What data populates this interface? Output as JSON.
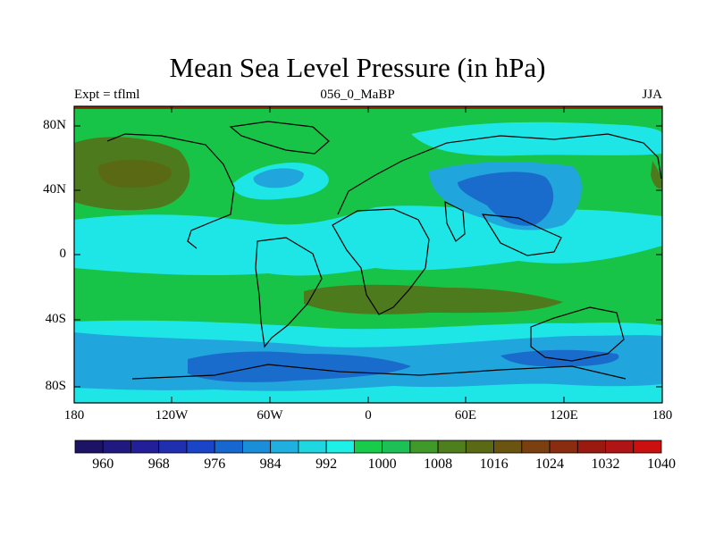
{
  "title": "Mean Sea Level Pressure (in hPa)",
  "subtitle_left": "Expt = tflml",
  "subtitle_center": "056_0_MaBP",
  "subtitle_right": "JJA",
  "lat_ticks": [
    "80N",
    "40N",
    "0",
    "40S",
    "80S"
  ],
  "lon_ticks": [
    "180",
    "120W",
    "60W",
    "0",
    "60E",
    "120E",
    "180"
  ],
  "colorbar": {
    "labels": [
      "960",
      "968",
      "976",
      "984",
      "992",
      "1000",
      "1008",
      "1016",
      "1024",
      "1032",
      "1040"
    ],
    "colors": [
      "#1c1266",
      "#201a80",
      "#221f99",
      "#1f2fb0",
      "#1a45c8",
      "#1667cf",
      "#1a8ed8",
      "#20b0e0",
      "#1fd7e0",
      "#1ef0e8",
      "#16cc4a",
      "#1cc055",
      "#3f9a2a",
      "#4f7f1c",
      "#5a6a14",
      "#6a5410",
      "#7a4010",
      "#8a2c10",
      "#9a1a10",
      "#b01414",
      "#cc1010"
    ]
  },
  "map_colors": {
    "land_outline": "#000000",
    "level_996": "#1ee6e6",
    "level_1004": "#17c447",
    "level_1012": "#4e7a1e",
    "level_988": "#20a6dc",
    "level_980": "#1a6ccc",
    "edge_top": "#8a2c10"
  }
}
